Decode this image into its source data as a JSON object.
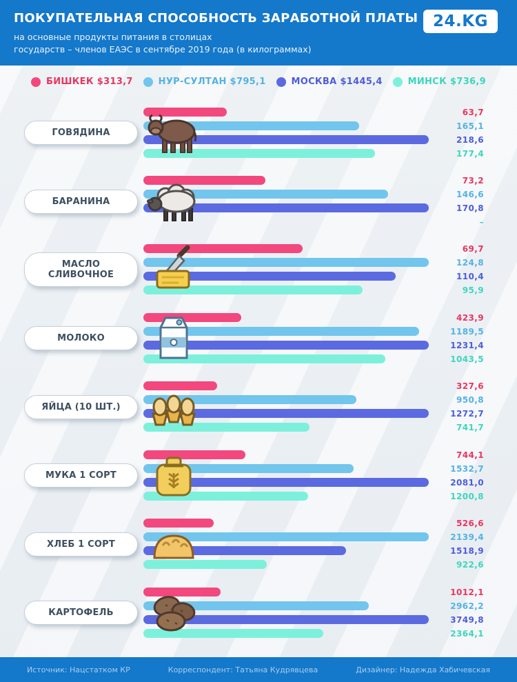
{
  "header": {
    "title": "ПОКУПАТЕЛЬНАЯ СПОСОБНОСТЬ ЗАРАБОТНОЙ ПЛАТЫ",
    "subtitle_line1": "на основные продукты питания в столицах",
    "subtitle_line2": "государств – членов ЕАЭС в сентябре 2019 года (в килограммах)",
    "logo_text": "24.KG"
  },
  "chart_data": {
    "type": "bar",
    "orientation": "horizontal",
    "unit": "килограммы",
    "series": [
      {
        "name": "БИШКЕК",
        "salary": "$313,7",
        "color": "#f2487e",
        "text_color": "#ea3560"
      },
      {
        "name": "НУР-СУЛТАН",
        "salary": "$795,1",
        "color": "#72c5ec",
        "text_color": "#54b2e3"
      },
      {
        "name": "МОСКВА",
        "salary": "$1445,4",
        "color": "#5b6ae0",
        "text_color": "#4d5cdb"
      },
      {
        "name": "МИНСК",
        "salary": "$736,9",
        "color": "#7df0dc",
        "text_color": "#3cd6bd"
      }
    ],
    "groups": [
      {
        "label": "ГОВЯДИНА",
        "icon": "cow-icon",
        "values": [
          63.7,
          165.1,
          218.6,
          177.4
        ],
        "display": [
          "63,7",
          "165,1",
          "218,6",
          "177,4"
        ]
      },
      {
        "label": "БАРАНИНА",
        "icon": "sheep-icon",
        "values": [
          73.2,
          146.6,
          170.8,
          null
        ],
        "display": [
          "73,2",
          "146,6",
          "170,8",
          "–"
        ]
      },
      {
        "label": "МАСЛО СЛИВОЧНОЕ",
        "icon": "butter-icon",
        "values": [
          69.7,
          124.8,
          110.4,
          95.9
        ],
        "display": [
          "69,7",
          "124,8",
          "110,4",
          "95,9"
        ]
      },
      {
        "label": "МОЛОКО",
        "icon": "milk-icon",
        "values": [
          423.9,
          1189.5,
          1231.4,
          1043.5
        ],
        "display": [
          "423,9",
          "1189,5",
          "1231,4",
          "1043,5"
        ]
      },
      {
        "label": "ЯЙЦА (10 ШТ.)",
        "icon": "eggs-icon",
        "values": [
          327.6,
          950.8,
          1272.7,
          741.7
        ],
        "display": [
          "327,6",
          "950,8",
          "1272,7",
          "741,7"
        ]
      },
      {
        "label": "МУКА 1 СОРТ",
        "icon": "flour-icon",
        "values": [
          744.1,
          1532.7,
          2081.0,
          1200.8
        ],
        "display": [
          "744,1",
          "1532,7",
          "2081,0",
          "1200,8"
        ]
      },
      {
        "label": "ХЛЕБ 1 СОРТ",
        "icon": "bread-icon",
        "values": [
          526.6,
          2139.4,
          1518.9,
          922.6
        ],
        "display": [
          "526,6",
          "2139,4",
          "1518,9",
          "922,6"
        ]
      },
      {
        "label": "КАРТОФЕЛЬ",
        "icon": "potato-icon",
        "values": [
          1012.1,
          2962.2,
          3749.8,
          2364.1
        ],
        "display": [
          "1012,1",
          "2962,2",
          "3749,8",
          "2364,1"
        ]
      }
    ]
  },
  "footer": {
    "source": "Источник: Нацстатком КР",
    "correspondent": "Корреспондент: Татьяна Кудрявцева",
    "designer": "Дизайнер: Надежда Хабичевская"
  }
}
